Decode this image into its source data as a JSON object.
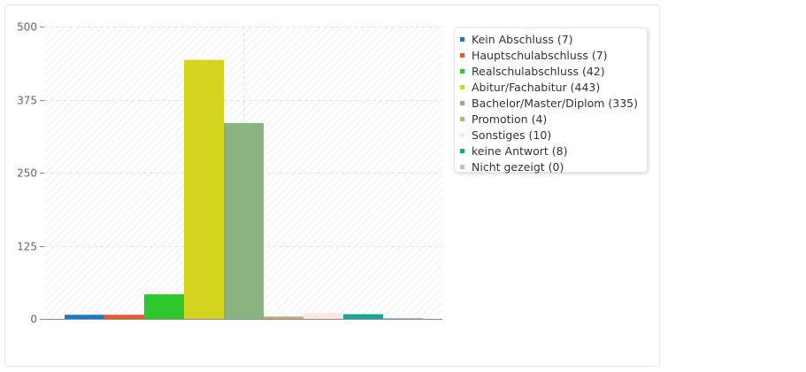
{
  "chart_data": {
    "type": "bar",
    "categories": [
      "Kein Abschluss",
      "Hauptschulabschluss",
      "Realschulabschluss",
      "Abitur/Fachabitur",
      "Bachelor/Master/Diplom",
      "Promotion",
      "Sonstiges",
      "keine Antwort",
      "Nicht gezeigt"
    ],
    "values": [
      7,
      7,
      42,
      443,
      335,
      4,
      10,
      8,
      0
    ],
    "legend_labels": [
      "Kein Abschluss (7)",
      "Hauptschulabschluss (7)",
      "Realschulabschluss (42)",
      "Abitur/Fachabitur (443)",
      "Bachelor/Master/Diplom (335)",
      "Promotion (4)",
      "Sonstiges (10)",
      "keine Antwort (8)",
      "Nicht gezeigt (0)"
    ],
    "colors": [
      "#1a7ac4",
      "#e65c2e",
      "#2ec82e",
      "#d4d41e",
      "#89b481",
      "#c9a87c",
      "#fbe8e0",
      "#1aa59b",
      "#a8c3dd"
    ],
    "yticks": [
      "500",
      "375",
      "250",
      "125",
      "0"
    ],
    "ylim": [
      0,
      500
    ],
    "title": "",
    "xlabel": "",
    "ylabel": "",
    "grid": true,
    "legend_position": "right"
  }
}
